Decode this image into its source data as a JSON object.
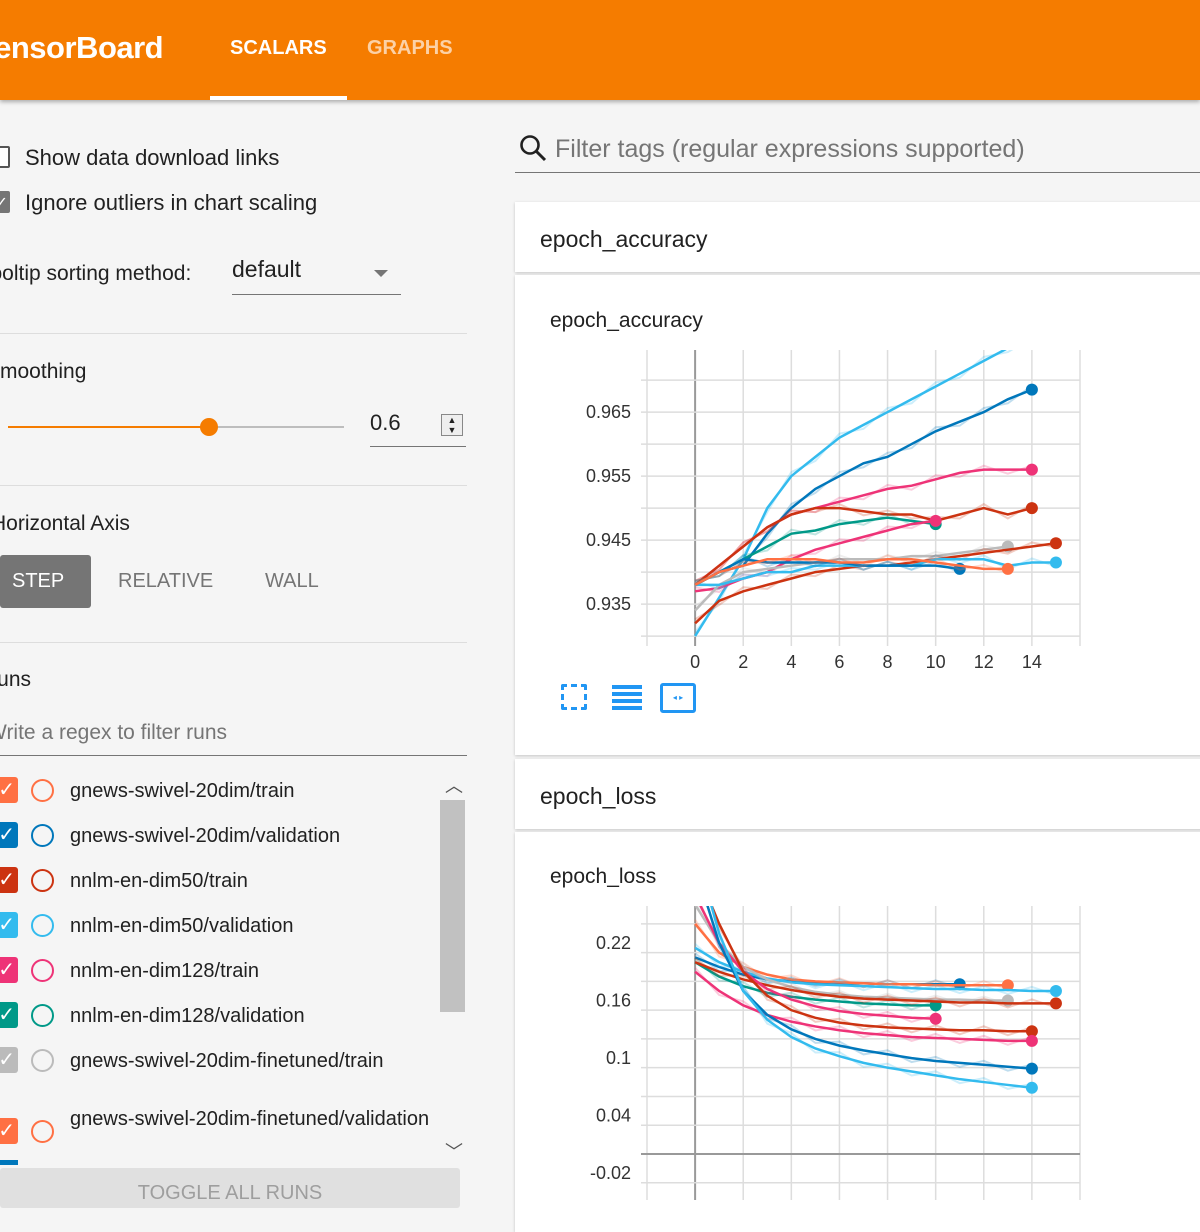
{
  "header": {
    "brand": "TensorBoard",
    "tabs": [
      {
        "label": "SCALARS",
        "active": true
      },
      {
        "label": "GRAPHS",
        "active": false
      }
    ]
  },
  "sidebar": {
    "show_download_links": {
      "label": "Show data download links",
      "checked": false
    },
    "ignore_outliers": {
      "label": "Ignore outliers in chart scaling",
      "checked": true
    },
    "tooltip_sorting": {
      "label": "Tooltip sorting method:",
      "value": "default"
    },
    "smoothing": {
      "label": "Smoothing",
      "value": "0.6",
      "fraction": 0.6
    },
    "horizontal_axis": {
      "label": "Horizontal Axis",
      "options": [
        "STEP",
        "RELATIVE",
        "WALL"
      ],
      "selected": "STEP"
    },
    "runs": {
      "label": "Runs",
      "filter_placeholder": "Write a regex to filter runs",
      "items": [
        {
          "label": "gnews-swivel-20dim/train",
          "color": "#ff7043",
          "checked": true
        },
        {
          "label": "gnews-swivel-20dim/validation",
          "color": "#0077bb",
          "checked": true
        },
        {
          "label": "nnlm-en-dim50/train",
          "color": "#cc3311",
          "checked": true
        },
        {
          "label": "nnlm-en-dim50/validation",
          "color": "#33bbee",
          "checked": true
        },
        {
          "label": "nnlm-en-dim128/train",
          "color": "#ee3377",
          "checked": true
        },
        {
          "label": "nnlm-en-dim128/validation",
          "color": "#009988",
          "checked": true
        },
        {
          "label": "gnews-swivel-20dim-finetuned/train",
          "color": "#bbbbbb",
          "checked": true
        },
        {
          "label": "gnews-swivel-20dim-finetuned/validation",
          "color": "#ff7043",
          "checked": true
        }
      ],
      "toggle_all": "TOGGLE ALL RUNS"
    }
  },
  "main": {
    "filter_placeholder": "Filter tags (regular expressions supported)",
    "cards": [
      {
        "title": "epoch_accuracy"
      },
      {
        "title": "epoch_loss"
      }
    ]
  },
  "chart_data": [
    {
      "type": "line",
      "title": "epoch_accuracy",
      "xlim": [
        -2,
        16
      ],
      "ylim": [
        0.9297,
        0.9747
      ],
      "xticks": [
        0,
        2,
        4,
        6,
        8,
        10,
        12,
        14
      ],
      "yticks": [
        0.935,
        0.945,
        0.955,
        0.965
      ],
      "ytick_labels": [
        "0.935",
        "0.945",
        "0.955",
        "0.965"
      ],
      "grid": true,
      "series": [
        {
          "color": "#33bbee",
          "x0": 0,
          "values": [
            0.93,
            0.936,
            0.942,
            0.95,
            0.955,
            0.958,
            0.961,
            0.963,
            0.965,
            0.967,
            0.969,
            0.971,
            0.973,
            0.975,
            0.976
          ],
          "dot": false
        },
        {
          "color": "#0077bb",
          "x0": 0,
          "values": [
            0.938,
            0.94,
            0.941,
            0.946,
            0.95,
            0.953,
            0.955,
            0.957,
            0.958,
            0.96,
            0.962,
            0.9635,
            0.965,
            0.967,
            0.9685
          ],
          "dot": true
        },
        {
          "color": "#ee3377",
          "x0": 0,
          "values": [
            0.938,
            0.941,
            0.944,
            0.947,
            0.949,
            0.95,
            0.951,
            0.952,
            0.953,
            0.9535,
            0.9545,
            0.9555,
            0.956,
            0.956,
            0.956
          ],
          "dot": true
        },
        {
          "color": "#cc3311",
          "x0": 0,
          "values": [
            0.938,
            0.941,
            0.944,
            0.947,
            0.949,
            0.95,
            0.95,
            0.9495,
            0.949,
            0.949,
            0.948,
            0.949,
            0.95,
            0.949,
            0.95
          ],
          "dot": true
        },
        {
          "color": "#009988",
          "x0": 0,
          "values": [
            0.938,
            0.94,
            0.942,
            0.944,
            0.946,
            0.9465,
            0.9475,
            0.948,
            0.9485,
            0.948,
            0.9475
          ],
          "dot": true
        },
        {
          "color": "#ee3377",
          "x0": 0,
          "values": [
            0.937,
            0.9375,
            0.939,
            0.94,
            0.942,
            0.9435,
            0.9445,
            0.9455,
            0.9465,
            0.9475,
            0.948
          ],
          "dot": true
        },
        {
          "color": "#bbbbbb",
          "x0": 0,
          "values": [
            0.934,
            0.938,
            0.94,
            0.9405,
            0.941,
            0.9415,
            0.942,
            0.942,
            0.942,
            0.9425,
            0.9425,
            0.943,
            0.9435,
            0.944
          ],
          "dot": true
        },
        {
          "color": "#cc3311",
          "x0": 0,
          "values": [
            0.932,
            0.9355,
            0.937,
            0.938,
            0.939,
            0.94,
            0.9405,
            0.941,
            0.941,
            0.9415,
            0.942,
            0.9425,
            0.943,
            0.9435,
            0.944,
            0.9445
          ],
          "dot": true
        },
        {
          "color": "#33bbee",
          "x0": 0,
          "values": [
            0.938,
            0.938,
            0.939,
            0.94,
            0.94,
            0.941,
            0.941,
            0.941,
            0.941,
            0.941,
            0.942,
            0.942,
            0.942,
            0.941,
            0.9415,
            0.9415
          ],
          "dot": true
        },
        {
          "color": "#0077bb",
          "x0": 0,
          "values": [
            0.938,
            0.94,
            0.942,
            0.9415,
            0.9415,
            0.9415,
            0.9415,
            0.941,
            0.941,
            0.941,
            0.941,
            0.9405
          ],
          "dot": true
        },
        {
          "color": "#ff7043",
          "x0": 0,
          "values": [
            0.938,
            0.94,
            0.941,
            0.942,
            0.942,
            0.942,
            0.9415,
            0.9415,
            0.942,
            0.942,
            0.9415,
            0.941,
            0.9405,
            0.9405
          ],
          "dot": true
        }
      ]
    },
    {
      "type": "line",
      "title": "epoch_loss",
      "xlim": [
        -2,
        16
      ],
      "ylim": [
        -0.048,
        0.2586
      ],
      "xticks": [
        0,
        2,
        4,
        6,
        8,
        10,
        12,
        14
      ],
      "yticks": [
        0.22,
        0.16,
        0.1,
        0.04,
        -0.02
      ],
      "ytick_labels": [
        "0.22",
        "0.16",
        "0.1",
        "0.04",
        "-0.02"
      ],
      "grid": true,
      "series": [
        {
          "color": "#0077bb",
          "values": [
            0.205,
            0.195,
            0.187,
            0.182,
            0.18,
            0.179,
            0.178,
            0.178,
            0.177,
            0.177,
            0.177,
            0.177
          ]
        },
        {
          "color": "#ff7043",
          "values": [
            0.24,
            0.21,
            0.195,
            0.187,
            0.182,
            0.18,
            0.179,
            0.178,
            0.177,
            0.177,
            0.176,
            0.176,
            0.176,
            0.176
          ]
        },
        {
          "color": "#33bbee",
          "values": [
            0.215,
            0.2,
            0.19,
            0.183,
            0.179,
            0.177,
            0.176,
            0.175,
            0.174,
            0.173,
            0.172,
            0.172,
            0.171,
            0.171,
            0.17,
            0.17
          ]
        },
        {
          "color": "#009988",
          "values": [
            0.2,
            0.185,
            0.175,
            0.168,
            0.164,
            0.161,
            0.159,
            0.157,
            0.156,
            0.155,
            0.155
          ]
        },
        {
          "color": "#bbbbbb",
          "values": [
            0.26,
            0.22,
            0.195,
            0.182,
            0.174,
            0.169,
            0.166,
            0.164,
            0.163,
            0.162,
            0.161,
            0.161,
            0.16,
            0.16
          ]
        },
        {
          "color": "#cc3311",
          "values": [
            0.2,
            0.19,
            0.182,
            0.176,
            0.171,
            0.167,
            0.164,
            0.162,
            0.161,
            0.16,
            0.159,
            0.158,
            0.158,
            0.157,
            0.157,
            0.157
          ]
        },
        {
          "color": "#ee3377",
          "values": [
            0.27,
            0.22,
            0.19,
            0.172,
            0.161,
            0.154,
            0.149,
            0.146,
            0.144,
            0.142,
            0.141
          ]
        },
        {
          "color": "#cc3311",
          "values": [
            0.3,
            0.24,
            0.19,
            0.165,
            0.15,
            0.142,
            0.137,
            0.134,
            0.132,
            0.131,
            0.13,
            0.129,
            0.129,
            0.128,
            0.128
          ]
        },
        {
          "color": "#ee3377",
          "values": [
            0.19,
            0.17,
            0.155,
            0.145,
            0.138,
            0.133,
            0.129,
            0.126,
            0.124,
            0.122,
            0.121,
            0.12,
            0.119,
            0.118,
            0.118
          ]
        },
        {
          "color": "#0077bb",
          "values": [
            0.3,
            0.22,
            0.17,
            0.145,
            0.13,
            0.12,
            0.113,
            0.108,
            0.104,
            0.1,
            0.097,
            0.095,
            0.093,
            0.091,
            0.089
          ]
        },
        {
          "color": "#33bbee",
          "values": [
            0.32,
            0.23,
            0.17,
            0.14,
            0.122,
            0.11,
            0.102,
            0.095,
            0.09,
            0.086,
            0.082,
            0.078,
            0.075,
            0.072,
            0.069
          ]
        }
      ]
    }
  ]
}
